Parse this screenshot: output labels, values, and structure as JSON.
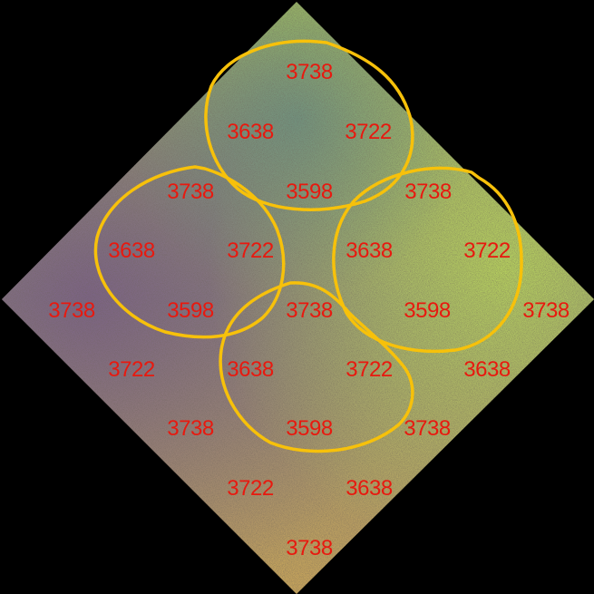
{
  "colors": {
    "background": "#000000",
    "label": "#e8190f",
    "loop_outline": "#f7c10a",
    "gradient_top": "#a9c35a",
    "gradient_left": "#7a5f86",
    "gradient_right": "#b8d45c",
    "gradient_bottom": "#c8a55a"
  },
  "labels": [
    {
      "text": "3738"
    },
    {
      "text": "3638"
    },
    {
      "text": "3722"
    },
    {
      "text": "3738"
    },
    {
      "text": "3598"
    },
    {
      "text": "3738"
    },
    {
      "text": "3638"
    },
    {
      "text": "3722"
    },
    {
      "text": "3638"
    },
    {
      "text": "3722"
    },
    {
      "text": "3738"
    },
    {
      "text": "3598"
    },
    {
      "text": "3738"
    },
    {
      "text": "3598"
    },
    {
      "text": "3738"
    },
    {
      "text": "3722"
    },
    {
      "text": "3638"
    },
    {
      "text": "3722"
    },
    {
      "text": "3638"
    },
    {
      "text": "3738"
    },
    {
      "text": "3598"
    },
    {
      "text": "3738"
    },
    {
      "text": "3722"
    },
    {
      "text": "3638"
    },
    {
      "text": "3738"
    }
  ]
}
